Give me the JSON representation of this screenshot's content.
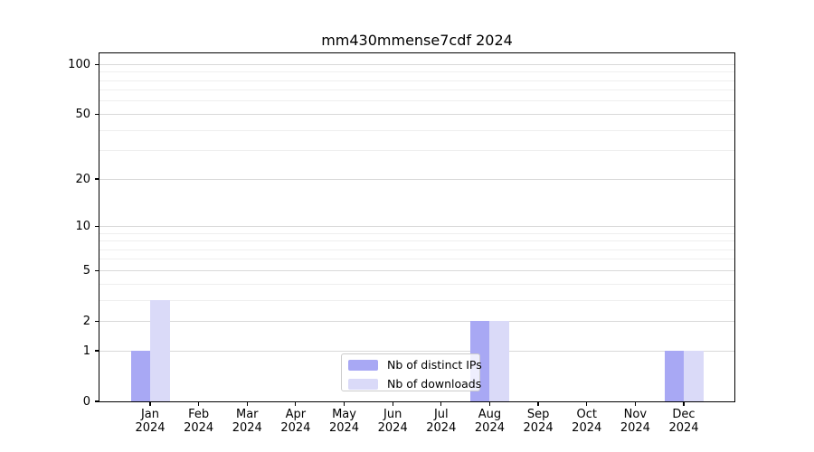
{
  "chart_data": {
    "type": "bar",
    "title": "mm430mmense7cdf 2024",
    "categories": [
      "Jan",
      "Feb",
      "Mar",
      "Apr",
      "May",
      "Jun",
      "Jul",
      "Aug",
      "Sep",
      "Oct",
      "Nov",
      "Dec"
    ],
    "x_axis": {
      "year_label": "2024"
    },
    "y_axis": {
      "scale": "log1p",
      "ticks": [
        0,
        1,
        2,
        5,
        10,
        20,
        50,
        100
      ],
      "minor_gridlines": [
        3,
        4,
        6,
        7,
        8,
        9,
        30,
        40,
        60,
        70,
        80,
        90
      ],
      "ymax": 116.5,
      "ylim": [
        0,
        116.5
      ],
      "grid": true
    },
    "series": [
      {
        "name": "Nb of distinct IPs",
        "color": "#a8a8f4",
        "values": [
          1,
          0,
          0,
          0,
          0,
          0,
          0,
          2,
          0,
          0,
          0,
          1
        ]
      },
      {
        "name": "Nb of downloads",
        "color": "#dadaf8",
        "values": [
          3,
          0,
          0,
          0,
          0,
          0,
          0,
          2,
          0,
          0,
          0,
          1
        ]
      }
    ],
    "legend": {
      "position": "lower center"
    },
    "colors": {
      "grid_major": "#d9d9d9",
      "grid_minor": "#efefef",
      "spine": "#000000",
      "background": "#ffffff",
      "text": "#000000"
    }
  }
}
